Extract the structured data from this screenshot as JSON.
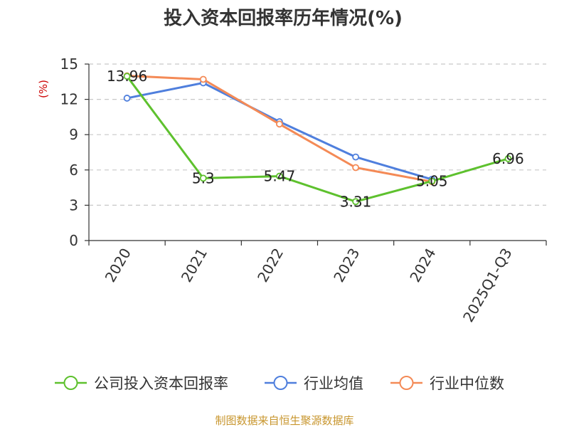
{
  "chart_data": {
    "type": "line",
    "title": "投入资本回报率历年情况(%)",
    "ylabel": "(%)",
    "xlabel": "",
    "categories": [
      "2020",
      "2021",
      "2022",
      "2023",
      "2024",
      "2025Q1-Q3"
    ],
    "ylim": [
      0,
      15
    ],
    "yticks": [
      0,
      3,
      6,
      9,
      12,
      15
    ],
    "grid": true,
    "legend_position": "bottom",
    "series": [
      {
        "name": "公司投入资本回报率",
        "color": "#5ec12e",
        "values": [
          13.96,
          5.3,
          5.47,
          3.31,
          5.05,
          6.96
        ],
        "labels": [
          "13.96",
          "5.3",
          "5.47",
          "3.31",
          "5.05",
          "6.96"
        ]
      },
      {
        "name": "行业均值",
        "color": "#4f7fdd",
        "values": [
          12.1,
          13.4,
          10.1,
          7.1,
          5.2,
          null
        ]
      },
      {
        "name": "行业中位数",
        "color": "#f48a56",
        "values": [
          14.0,
          13.7,
          9.9,
          6.2,
          5.0,
          null
        ]
      }
    ]
  },
  "footer": {
    "source": "制图数据来自恒生聚源数据库"
  }
}
